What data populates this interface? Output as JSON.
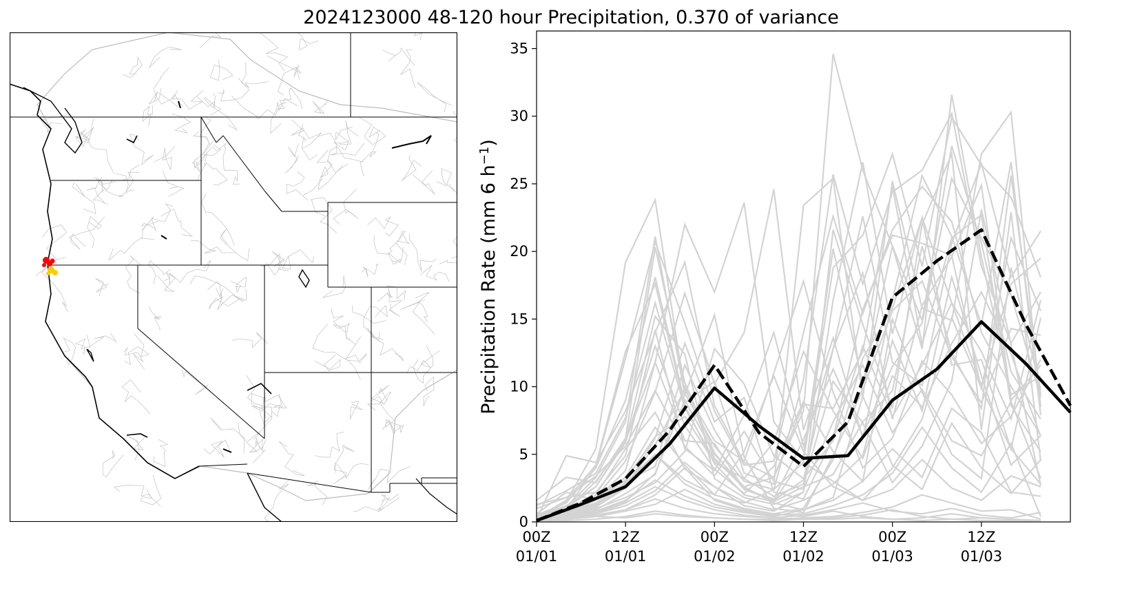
{
  "figure": {
    "title": "2024123000 48-120 hour Precipitation, 0.370 of variance"
  },
  "map": {
    "highlight_colors": [
      "#ff0000",
      "#ffcc00"
    ]
  },
  "chart_data": {
    "type": "line",
    "ylabel": "Precipitation Rate (mm 6 h",
    "ylabel_sup": "−1",
    "ylabel_close": ")",
    "xlabel": "",
    "ylim": [
      0,
      36.3
    ],
    "xlim": [
      0,
      18
    ],
    "yticks": [
      0,
      5,
      10,
      15,
      20,
      25,
      30,
      35
    ],
    "xticks": [
      {
        "x": 0,
        "line1": "00Z",
        "line2": "01/01"
      },
      {
        "x": 3,
        "line1": "12Z",
        "line2": "01/01"
      },
      {
        "x": 6,
        "line1": "00Z",
        "line2": "01/02"
      },
      {
        "x": 9,
        "line1": "12Z",
        "line2": "01/02"
      },
      {
        "x": 12,
        "line1": "00Z",
        "line2": "01/03"
      },
      {
        "x": 15,
        "line1": "12Z",
        "line2": "01/03"
      }
    ],
    "x_step_hours": 6,
    "ensemble_color": "#d3d3d3",
    "ensemble": [
      [
        0.2,
        1.5,
        5.4,
        19.2,
        23.8,
        9.5,
        5.6,
        3.0,
        2.4,
        10.5,
        25.7,
        17.6,
        24.4,
        26.0,
        30.2,
        18.9,
        13.2,
        17.0
      ],
      [
        0.1,
        0.9,
        4.1,
        12.1,
        20.7,
        14.7,
        8.2,
        4.2,
        4.5,
        14.0,
        22.6,
        15.4,
        21.6,
        24.8,
        22.2,
        14.0,
        10.0,
        6.4
      ],
      [
        1.2,
        2.3,
        3.6,
        7.7,
        16.2,
        8.4,
        4.6,
        2.6,
        3.3,
        8.2,
        34.6,
        26.0,
        20.4,
        12.8,
        31.6,
        19.6,
        9.4,
        10.8
      ],
      [
        0.4,
        1.0,
        2.6,
        6.0,
        11.8,
        22.0,
        17.0,
        23.6,
        7.4,
        4.5,
        18.8,
        21.2,
        27.2,
        18.9,
        29.9,
        26.4,
        24.0,
        18.1
      ],
      [
        0.3,
        0.7,
        1.8,
        4.5,
        9.6,
        16.9,
        10.2,
        14.0,
        24.6,
        6.8,
        13.6,
        6.2,
        16.4,
        25.6,
        21.1,
        14.6,
        26.6,
        7.9
      ],
      [
        0.5,
        1.4,
        4.0,
        9.0,
        18.1,
        8.8,
        10.4,
        3.6,
        2.8,
        23.4,
        25.4,
        9.2,
        25.2,
        15.8,
        14.9,
        27.2,
        30.3,
        8.5
      ],
      [
        0.2,
        0.6,
        1.6,
        3.8,
        11.8,
        6.0,
        5.8,
        2.4,
        1.6,
        3.1,
        12.8,
        22.6,
        11.8,
        10.1,
        20.6,
        26.5,
        18.1,
        21.5
      ],
      [
        0.1,
        0.4,
        1.1,
        2.5,
        6.2,
        13.2,
        7.4,
        9.2,
        2.2,
        1.7,
        6.2,
        15.7,
        21.2,
        20.6,
        19.7,
        9.8,
        21.0,
        15.6
      ],
      [
        1.6,
        3.3,
        2.9,
        6.2,
        20.3,
        10.3,
        5.1,
        2.4,
        1.7,
        6.1,
        11.3,
        6.4,
        11.5,
        14.7,
        25.4,
        21.0,
        16.8,
        9.2
      ],
      [
        0.1,
        0.5,
        2.0,
        5.4,
        8.1,
        3.9,
        2.6,
        1.2,
        0.8,
        2.2,
        16.4,
        26.6,
        13.9,
        22.5,
        16.2,
        10.1,
        17.6,
        19.5
      ],
      [
        0.2,
        4.9,
        4.4,
        8.2,
        14.0,
        19.2,
        8.6,
        4.4,
        3.3,
        8.7,
        8.4,
        12.6,
        24.8,
        13.1,
        21.0,
        22.7,
        8.6,
        5.2
      ],
      [
        0.4,
        1.1,
        3.3,
        7.4,
        21.1,
        9.4,
        15.3,
        4.8,
        1.0,
        0.7,
        4.9,
        9.8,
        15.6,
        17.8,
        12.2,
        8.8,
        14.3,
        13.8
      ],
      [
        0.2,
        0.8,
        2.2,
        4.9,
        14.2,
        5.4,
        3.8,
        7.9,
        14.0,
        5.6,
        12.8,
        18.4,
        7.6,
        16.0,
        19.6,
        24.9,
        9.0,
        11.6
      ],
      [
        0.1,
        0.3,
        0.9,
        2.1,
        3.5,
        10.0,
        4.7,
        2.5,
        1.5,
        2.6,
        3.5,
        7.4,
        9.7,
        20.4,
        12.5,
        8.4,
        25.6,
        9.4
      ],
      [
        0.3,
        1.6,
        4.2,
        12.6,
        17.6,
        8.6,
        4.3,
        2.0,
        1.5,
        4.8,
        20.2,
        10.2,
        20.4,
        14.9,
        27.8,
        20.6,
        11.1,
        7.6
      ],
      [
        0.2,
        0.4,
        1.0,
        1.8,
        2.9,
        5.2,
        12.8,
        10.2,
        4.9,
        3.2,
        6.0,
        13.0,
        7.8,
        11.6,
        16.2,
        12.6,
        7.6,
        16.4
      ],
      [
        0.6,
        2.2,
        1.6,
        3.1,
        6.3,
        7.8,
        4.4,
        3.2,
        5.9,
        12.6,
        8.2,
        4.7,
        10.8,
        8.5,
        13.2,
        17.0,
        12.4,
        6.3
      ],
      [
        0.1,
        0.2,
        0.4,
        0.9,
        2.0,
        4.0,
        1.6,
        0.9,
        0.6,
        1.0,
        4.6,
        12.1,
        15.8,
        22.5,
        11.6,
        12.0,
        5.4,
        15.1
      ],
      [
        0.3,
        0.9,
        3.0,
        6.0,
        15.2,
        12.4,
        3.2,
        1.8,
        1.3,
        2.2,
        21.6,
        14.6,
        8.4,
        22.0,
        27.2,
        6.8,
        22.9,
        4.5
      ],
      [
        0.2,
        0.5,
        1.2,
        2.6,
        5.7,
        9.8,
        6.0,
        4.5,
        11.0,
        17.8,
        9.6,
        4.0,
        6.2,
        11.9,
        9.4,
        5.8,
        7.8,
        12.0
      ],
      [
        0.1,
        0.2,
        0.6,
        1.2,
        2.3,
        4.4,
        2.6,
        1.5,
        0.9,
        1.6,
        2.8,
        4.9,
        13.4,
        8.2,
        18.1,
        10.8,
        4.2,
        6.4
      ],
      [
        1.0,
        1.8,
        3.4,
        5.6,
        9.7,
        5.6,
        3.4,
        6.7,
        3.0,
        2.4,
        7.4,
        11.6,
        6.6,
        9.8,
        6.0,
        4.9,
        8.9,
        3.2
      ],
      [
        0.2,
        0.3,
        0.8,
        1.6,
        3.1,
        1.9,
        1.1,
        0.7,
        0.4,
        0.9,
        1.6,
        3.0,
        5.4,
        3.3,
        8.4,
        6.6,
        2.2,
        1.9
      ],
      [
        0.1,
        0.2,
        0.4,
        0.8,
        1.3,
        2.4,
        1.3,
        0.8,
        0.5,
        0.6,
        1.2,
        2.0,
        3.6,
        7.0,
        4.0,
        2.2,
        5.8,
        0.4
      ],
      [
        0.4,
        0.8,
        1.7,
        3.3,
        7.0,
        4.2,
        2.0,
        1.4,
        2.4,
        4.4,
        3.0,
        1.6,
        2.4,
        4.6,
        2.5,
        1.6,
        3.4,
        2.6
      ],
      [
        0.1,
        0.1,
        0.2,
        0.4,
        0.8,
        0.5,
        0.3,
        0.2,
        0.2,
        0.3,
        0.4,
        0.7,
        1.1,
        2.0,
        1.4,
        0.8,
        0.9,
        0.2
      ],
      [
        0.2,
        0.2,
        0.5,
        0.9,
        1.7,
        1.0,
        0.6,
        0.4,
        0.3,
        0.5,
        0.9,
        1.4,
        0.8,
        0.6,
        1.0,
        0.5,
        0.3,
        0.7
      ],
      [
        0.1,
        0.3,
        0.6,
        1.4,
        2.6,
        1.6,
        0.9,
        0.5,
        0.3,
        0.2,
        0.3,
        0.5,
        0.9,
        0.4,
        0.2,
        0.3,
        0.2,
        0.1
      ],
      [
        0.3,
        0.7,
        1.4,
        2.9,
        5.0,
        2.8,
        1.7,
        1.0,
        0.6,
        0.4,
        0.8,
        0.4,
        0.2,
        0.3,
        0.6,
        0.3,
        0.2,
        0.1
      ],
      [
        0.1,
        0.2,
        0.4,
        0.3,
        0.6,
        0.4,
        0.3,
        0.2,
        0.1,
        0.2,
        0.2,
        0.3,
        0.2,
        0.1,
        0.2,
        0.1,
        0.1,
        0.1
      ],
      [
        1.3,
        1.8,
        2.2,
        3.0,
        4.1,
        11.6,
        6.8,
        3.2,
        1.9,
        2.8,
        10.4,
        7.3,
        2.9,
        5.6,
        10.4,
        23.1,
        13.1,
        2.7
      ],
      [
        0.5,
        1.2,
        2.6,
        5.9,
        13.0,
        7.1,
        3.9,
        2.1,
        4.1,
        8.9,
        5.2,
        3.0,
        15.0,
        9.6,
        5.0,
        3.2,
        18.8,
        9.8
      ],
      [
        0.2,
        0.6,
        1.3,
        2.8,
        5.0,
        3.1,
        2.0,
        5.2,
        10.8,
        5.2,
        2.6,
        1.6,
        4.0,
        7.6,
        15.1,
        9.9,
        5.4,
        2.8
      ],
      [
        0.1,
        0.3,
        0.7,
        1.5,
        3.6,
        9.0,
        5.0,
        2.6,
        1.4,
        0.9,
        1.8,
        9.3,
        4.2,
        2.4,
        7.3,
        4.0,
        2.1,
        4.6
      ]
    ],
    "series": [
      {
        "style": "solid",
        "color": "#000000",
        "values": [
          0.1,
          1.3,
          2.6,
          5.8,
          9.9,
          7.1,
          4.7,
          4.9,
          9.0,
          11.3,
          14.8,
          11.7,
          8.1
        ]
      },
      {
        "style": "dashed",
        "color": "#000000",
        "values": [
          0.1,
          1.4,
          3.2,
          6.8,
          11.6,
          6.6,
          4.1,
          7.4,
          16.6,
          19.3,
          21.6,
          14.6,
          8.6
        ]
      }
    ]
  }
}
